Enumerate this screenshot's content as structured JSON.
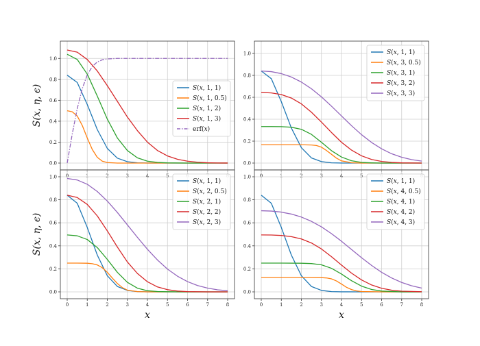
{
  "colors": {
    "C0": "#1f77b4",
    "C1": "#ff7f0e",
    "C2": "#2ca02c",
    "C3": "#d62728",
    "C4": "#9467bd",
    "grid": "#cfcfcf",
    "axes": "#333333"
  },
  "chart_data": [
    {
      "type": "line",
      "panel": "top-left",
      "xlabel": "",
      "ylabel": "S(x, η, ϵ)",
      "xlim": [
        0,
        8
      ],
      "ylim": [
        0,
        1.1
      ],
      "xticks": [
        "0",
        "1",
        "2",
        "3",
        "4",
        "5",
        "6",
        "7",
        "8"
      ],
      "yticks": [
        "0.0",
        "0.2",
        "0.4",
        "0.6",
        "0.8",
        "1.0"
      ],
      "grid": true,
      "legend_position": "center-right",
      "series": [
        {
          "name": "S(x, 1, 1)",
          "color": "#1f77b4",
          "style": "solid",
          "x": [
            0,
            0.5,
            1,
            1.5,
            2,
            2.5,
            3,
            3.5,
            4,
            5,
            6,
            7,
            8
          ],
          "values": [
            0.84,
            0.77,
            0.56,
            0.32,
            0.14,
            0.047,
            0.013,
            0.0024,
            0.0004,
            0,
            0,
            0,
            0
          ]
        },
        {
          "name": "S(x, 1, 0.5)",
          "color": "#ff7f0e",
          "style": "solid",
          "x": [
            0,
            0.25,
            0.5,
            0.75,
            1,
            1.25,
            1.5,
            1.75,
            2,
            2.5,
            3,
            4,
            5,
            6,
            7,
            8
          ],
          "values": [
            0.5,
            0.49,
            0.45,
            0.36,
            0.24,
            0.13,
            0.055,
            0.018,
            0.005,
            0,
            0,
            0,
            0,
            0,
            0,
            0
          ]
        },
        {
          "name": "S(x, 1, 2)",
          "color": "#2ca02c",
          "style": "solid",
          "x": [
            0,
            0.5,
            1,
            1.5,
            2,
            2.5,
            3,
            3.5,
            4,
            4.5,
            5,
            6,
            7,
            8
          ],
          "values": [
            1.04,
            0.99,
            0.85,
            0.64,
            0.42,
            0.24,
            0.12,
            0.05,
            0.018,
            0.006,
            0.002,
            0,
            0,
            0
          ]
        },
        {
          "name": "S(x, 1, 3)",
          "color": "#d62728",
          "style": "solid",
          "x": [
            0,
            0.5,
            1,
            1.5,
            2,
            2.5,
            3,
            3.5,
            4,
            4.5,
            5,
            5.5,
            6,
            6.5,
            7,
            7.5,
            8
          ],
          "values": [
            1.08,
            1.06,
            0.99,
            0.88,
            0.74,
            0.59,
            0.44,
            0.31,
            0.2,
            0.12,
            0.068,
            0.036,
            0.018,
            0.008,
            0.003,
            0.001,
            0.0005
          ]
        },
        {
          "name": "erf(x)",
          "color": "#9467bd",
          "style": "dashdot",
          "x": [
            0,
            0.25,
            0.5,
            0.75,
            1,
            1.25,
            1.5,
            1.75,
            2,
            2.5,
            3,
            4,
            5,
            6,
            7,
            8
          ],
          "values": [
            0,
            0.276,
            0.52,
            0.711,
            0.843,
            0.923,
            0.966,
            0.987,
            0.995,
            1,
            1,
            1,
            1,
            1,
            1,
            1
          ]
        }
      ]
    },
    {
      "type": "line",
      "panel": "top-right",
      "xlabel": "",
      "ylabel": "",
      "xlim": [
        0,
        8
      ],
      "ylim": [
        0,
        1.05
      ],
      "xticks": [
        "0",
        "1",
        "2",
        "3",
        "4",
        "5",
        "6",
        "7",
        "8"
      ],
      "yticks": [
        "0.0",
        "0.2",
        "0.4",
        "0.6",
        "0.8",
        "1.0"
      ],
      "grid": true,
      "legend_position": "top-right",
      "series": [
        {
          "name": "S(x, 1, 1)",
          "color": "#1f77b4",
          "style": "solid",
          "x": [
            0,
            0.5,
            1,
            1.5,
            2,
            2.5,
            3,
            3.5,
            4,
            5,
            6,
            7,
            8
          ],
          "values": [
            0.84,
            0.77,
            0.56,
            0.32,
            0.14,
            0.047,
            0.013,
            0.0024,
            0.0004,
            0,
            0,
            0,
            0
          ]
        },
        {
          "name": "S(x, 3, 0.5)",
          "color": "#ff7f0e",
          "style": "solid",
          "x": [
            0,
            1,
            2,
            2.5,
            2.75,
            3,
            3.25,
            3.5,
            3.75,
            4,
            4.5,
            5,
            6,
            7,
            8
          ],
          "values": [
            0.167,
            0.167,
            0.167,
            0.165,
            0.16,
            0.145,
            0.115,
            0.08,
            0.045,
            0.02,
            0.003,
            0,
            0,
            0,
            0
          ]
        },
        {
          "name": "S(x, 3, 1)",
          "color": "#2ca02c",
          "style": "solid",
          "x": [
            0,
            0.5,
            1,
            1.5,
            2,
            2.5,
            3,
            3.5,
            4,
            4.5,
            5,
            5.5,
            6,
            7,
            8
          ],
          "values": [
            0.333,
            0.333,
            0.332,
            0.327,
            0.308,
            0.262,
            0.19,
            0.113,
            0.055,
            0.021,
            0.006,
            0.002,
            0,
            0,
            0
          ]
        },
        {
          "name": "S(x, 3, 2)",
          "color": "#d62728",
          "style": "solid",
          "x": [
            0,
            0.5,
            1,
            1.5,
            2,
            2.5,
            3,
            3.5,
            4,
            4.5,
            5,
            5.5,
            6,
            6.5,
            7,
            8
          ],
          "values": [
            0.645,
            0.64,
            0.625,
            0.593,
            0.54,
            0.464,
            0.374,
            0.279,
            0.19,
            0.118,
            0.066,
            0.033,
            0.015,
            0.006,
            0.002,
            0
          ]
        },
        {
          "name": "S(x, 3, 3)",
          "color": "#9467bd",
          "style": "solid",
          "x": [
            0,
            0.5,
            1,
            1.5,
            2,
            2.5,
            3,
            3.5,
            4,
            4.5,
            5,
            5.5,
            6,
            6.5,
            7,
            7.5,
            8
          ],
          "values": [
            0.84,
            0.834,
            0.816,
            0.785,
            0.739,
            0.678,
            0.604,
            0.519,
            0.43,
            0.341,
            0.259,
            0.188,
            0.13,
            0.085,
            0.053,
            0.031,
            0.018
          ]
        }
      ]
    },
    {
      "type": "line",
      "panel": "bottom-left",
      "xlabel": "x",
      "ylabel": "S(x, η, ϵ)",
      "xlim": [
        0,
        8
      ],
      "ylim": [
        0,
        1.0
      ],
      "xticks": [
        "0",
        "1",
        "2",
        "3",
        "4",
        "5",
        "6",
        "7",
        "8"
      ],
      "yticks": [
        "0.0",
        "0.2",
        "0.4",
        "0.6",
        "0.8",
        "1.0"
      ],
      "grid": true,
      "legend_position": "top-right",
      "series": [
        {
          "name": "S(x, 1, 1)",
          "color": "#1f77b4",
          "style": "solid",
          "x": [
            0,
            0.5,
            1,
            1.5,
            2,
            2.5,
            3,
            3.5,
            4,
            5,
            6,
            7,
            8
          ],
          "values": [
            0.84,
            0.77,
            0.56,
            0.32,
            0.14,
            0.047,
            0.013,
            0.0024,
            0.0004,
            0,
            0,
            0,
            0
          ]
        },
        {
          "name": "S(x, 2, 0.5)",
          "color": "#ff7f0e",
          "style": "solid",
          "x": [
            0,
            0.5,
            1,
            1.25,
            1.5,
            1.75,
            2,
            2.25,
            2.5,
            2.75,
            3,
            3.5,
            4,
            5,
            6,
            7,
            8
          ],
          "values": [
            0.25,
            0.25,
            0.249,
            0.245,
            0.234,
            0.21,
            0.17,
            0.12,
            0.073,
            0.037,
            0.015,
            0.002,
            0,
            0,
            0,
            0,
            0
          ]
        },
        {
          "name": "S(x, 2, 1)",
          "color": "#2ca02c",
          "style": "solid",
          "x": [
            0,
            0.5,
            1,
            1.5,
            2,
            2.5,
            3,
            3.5,
            4,
            4.5,
            5,
            6,
            7,
            8
          ],
          "values": [
            0.495,
            0.487,
            0.455,
            0.385,
            0.282,
            0.17,
            0.083,
            0.032,
            0.01,
            0.003,
            0.001,
            0,
            0,
            0
          ]
        },
        {
          "name": "S(x, 2, 2)",
          "color": "#d62728",
          "style": "solid",
          "x": [
            0,
            0.5,
            1,
            1.5,
            2,
            2.5,
            3,
            3.5,
            4,
            4.5,
            5,
            5.5,
            6,
            7,
            8
          ],
          "values": [
            0.84,
            0.82,
            0.76,
            0.66,
            0.53,
            0.39,
            0.26,
            0.16,
            0.088,
            0.043,
            0.019,
            0.007,
            0.002,
            0,
            0
          ]
        },
        {
          "name": "S(x, 2, 3)",
          "color": "#9467bd",
          "style": "solid",
          "x": [
            0,
            0.5,
            1,
            1.5,
            2,
            2.5,
            3,
            3.5,
            4,
            4.5,
            5,
            5.5,
            6,
            6.5,
            7,
            7.5,
            8
          ],
          "values": [
            0.985,
            0.972,
            0.935,
            0.872,
            0.789,
            0.69,
            0.582,
            0.474,
            0.37,
            0.277,
            0.198,
            0.136,
            0.089,
            0.055,
            0.033,
            0.018,
            0.01
          ]
        }
      ]
    },
    {
      "type": "line",
      "panel": "bottom-right",
      "xlabel": "x",
      "ylabel": "",
      "xlim": [
        0,
        8
      ],
      "ylim": [
        0,
        1.0
      ],
      "xticks": [
        "0",
        "1",
        "2",
        "3",
        "4",
        "5",
        "6",
        "7",
        "8"
      ],
      "yticks": [
        "0.0",
        "0.2",
        "0.4",
        "0.6",
        "0.8",
        "1.0"
      ],
      "grid": true,
      "legend_position": "top-right",
      "series": [
        {
          "name": "S(x, 1, 1)",
          "color": "#1f77b4",
          "style": "solid",
          "x": [
            0,
            0.5,
            1,
            1.5,
            2,
            2.5,
            3,
            3.5,
            4,
            5,
            6,
            7,
            8
          ],
          "values": [
            0.84,
            0.77,
            0.56,
            0.32,
            0.14,
            0.047,
            0.013,
            0.0024,
            0.0004,
            0,
            0,
            0,
            0
          ]
        },
        {
          "name": "S(x, 4, 0.5)",
          "color": "#ff7f0e",
          "style": "solid",
          "x": [
            0,
            1,
            2,
            3,
            3.25,
            3.5,
            3.75,
            4,
            4.25,
            4.5,
            4.75,
            5,
            6,
            7,
            8
          ],
          "values": [
            0.125,
            0.125,
            0.125,
            0.124,
            0.121,
            0.113,
            0.095,
            0.068,
            0.04,
            0.02,
            0.008,
            0.003,
            0,
            0,
            0
          ]
        },
        {
          "name": "S(x, 4, 1)",
          "color": "#2ca02c",
          "style": "solid",
          "x": [
            0,
            1,
            2,
            2.5,
            3,
            3.5,
            4,
            4.5,
            5,
            5.5,
            6,
            7,
            8
          ],
          "values": [
            0.25,
            0.25,
            0.249,
            0.246,
            0.235,
            0.205,
            0.155,
            0.097,
            0.05,
            0.021,
            0.007,
            0,
            0
          ]
        },
        {
          "name": "S(x, 4, 2)",
          "color": "#d62728",
          "style": "solid",
          "x": [
            0,
            0.5,
            1,
            1.5,
            2,
            2.5,
            3,
            3.5,
            4,
            4.5,
            5,
            5.5,
            6,
            6.5,
            7,
            8
          ],
          "values": [
            0.495,
            0.494,
            0.49,
            0.48,
            0.46,
            0.425,
            0.373,
            0.306,
            0.233,
            0.163,
            0.104,
            0.06,
            0.031,
            0.015,
            0.006,
            0.001
          ]
        },
        {
          "name": "S(x, 4, 3)",
          "color": "#9467bd",
          "style": "solid",
          "x": [
            0,
            0.5,
            1,
            1.5,
            2,
            2.5,
            3,
            3.5,
            4,
            4.5,
            5,
            5.5,
            6,
            6.5,
            7,
            7.5,
            8
          ],
          "values": [
            0.705,
            0.702,
            0.693,
            0.676,
            0.65,
            0.613,
            0.565,
            0.506,
            0.44,
            0.368,
            0.297,
            0.23,
            0.17,
            0.121,
            0.082,
            0.053,
            0.033
          ]
        }
      ]
    }
  ]
}
